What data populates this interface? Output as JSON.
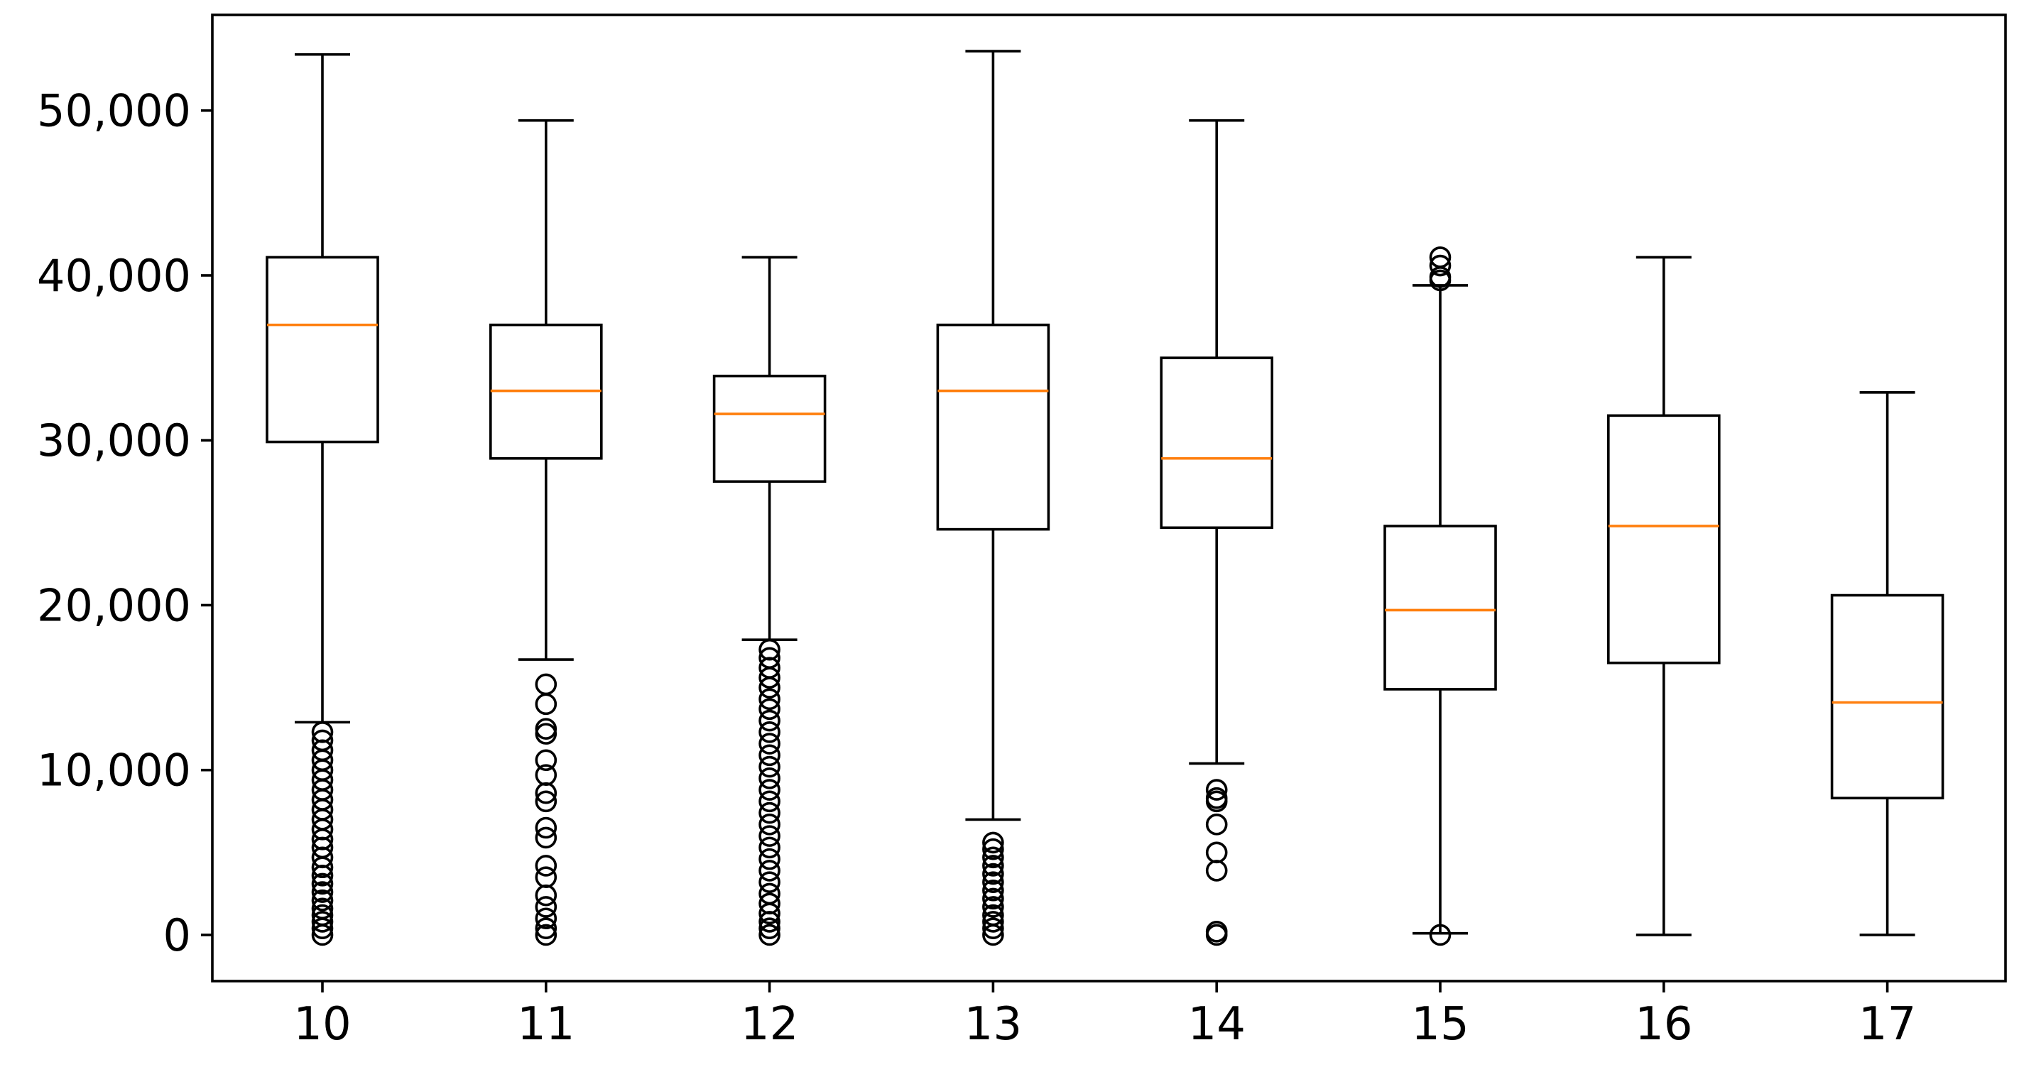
{
  "chart_data": {
    "type": "box",
    "title": "",
    "xlabel": "",
    "ylabel": "",
    "ylim": [
      -2800,
      55800
    ],
    "yticks": [
      {
        "value": 0,
        "label": "0"
      },
      {
        "value": 10000,
        "label": "10,000"
      },
      {
        "value": 20000,
        "label": "20,000"
      },
      {
        "value": 30000,
        "label": "30,000"
      },
      {
        "value": 40000,
        "label": "40,000"
      },
      {
        "value": 50000,
        "label": "50,000"
      }
    ],
    "categories": [
      "10",
      "11",
      "12",
      "13",
      "14",
      "15",
      "16",
      "17"
    ],
    "boxes": [
      {
        "category": "10",
        "whisker_low": 12900,
        "q1": 29900,
        "median": 37000,
        "q3": 41100,
        "whisker_high": 53400,
        "outliers": [
          12300,
          11800,
          11200,
          10600,
          10000,
          9400,
          8800,
          8200,
          7600,
          7000,
          6400,
          5800,
          5300,
          4700,
          4100,
          3600,
          3100,
          2600,
          2100,
          1600,
          1200,
          800,
          400,
          0
        ]
      },
      {
        "category": "11",
        "whisker_low": 16700,
        "q1": 28900,
        "median": 33000,
        "q3": 37000,
        "whisker_high": 49400,
        "outliers": [
          15200,
          14000,
          12500,
          12200,
          10600,
          9700,
          8600,
          8100,
          6500,
          5900,
          4200,
          3500,
          2400,
          1700,
          1000,
          400,
          0
        ]
      },
      {
        "category": "12",
        "whisker_low": 17900,
        "q1": 27500,
        "median": 31600,
        "q3": 33900,
        "whisker_high": 41100,
        "outliers": [
          17300,
          16800,
          16200,
          15600,
          15000,
          14300,
          13700,
          13000,
          12300,
          11600,
          10900,
          10200,
          9500,
          8800,
          8100,
          7400,
          6700,
          6000,
          5300,
          4600,
          3900,
          3200,
          2500,
          1900,
          1300,
          800,
          400,
          0
        ]
      },
      {
        "category": "13",
        "whisker_low": 7000,
        "q1": 24600,
        "median": 33000,
        "q3": 37000,
        "whisker_high": 53600,
        "outliers": [
          5600,
          5200,
          4700,
          4200,
          3700,
          3200,
          2700,
          2200,
          1700,
          1200,
          800,
          400,
          0
        ]
      },
      {
        "category": "14",
        "whisker_low": 10400,
        "q1": 24700,
        "median": 28900,
        "q3": 35000,
        "whisker_high": 49400,
        "outliers": [
          8800,
          8300,
          8100,
          6700,
          5000,
          3900,
          200,
          0
        ]
      },
      {
        "category": "15",
        "whisker_low": 100,
        "q1": 14900,
        "median": 19700,
        "q3": 24800,
        "whisker_high": 39400,
        "outliers": [
          41100,
          40600,
          39900,
          39700,
          0
        ]
      },
      {
        "category": "16",
        "whisker_low": 0,
        "q1": 16500,
        "median": 24800,
        "q3": 31500,
        "whisker_high": 41100,
        "outliers": []
      },
      {
        "category": "17",
        "whisker_low": 0,
        "q1": 8300,
        "median": 14100,
        "q3": 20600,
        "whisker_high": 32900,
        "outliers": []
      }
    ],
    "colors": {
      "box": "#000000",
      "median": "#ff7f0e",
      "outlier": "#000000"
    },
    "grid": false,
    "legend": "none"
  }
}
